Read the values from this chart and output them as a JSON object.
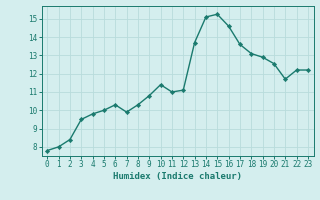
{
  "x": [
    0,
    1,
    2,
    3,
    4,
    5,
    6,
    7,
    8,
    9,
    10,
    11,
    12,
    13,
    14,
    15,
    16,
    17,
    18,
    19,
    20,
    21,
    22,
    23
  ],
  "y": [
    7.8,
    8.0,
    8.4,
    9.5,
    9.8,
    10.0,
    10.3,
    9.9,
    10.3,
    10.8,
    11.4,
    11.0,
    11.1,
    13.7,
    15.1,
    15.25,
    14.6,
    13.6,
    13.1,
    12.9,
    12.55,
    11.7,
    12.2,
    12.2
  ],
  "line_color": "#1a7a6e",
  "marker": "D",
  "marker_size": 2.2,
  "bg_color": "#d4eeee",
  "grid_color": "#b8dcdc",
  "xlabel": "Humidex (Indice chaleur)",
  "xlim": [
    -0.5,
    23.5
  ],
  "ylim": [
    7.5,
    15.7
  ],
  "yticks": [
    8,
    9,
    10,
    11,
    12,
    13,
    14,
    15
  ],
  "xticks": [
    0,
    1,
    2,
    3,
    4,
    5,
    6,
    7,
    8,
    9,
    10,
    11,
    12,
    13,
    14,
    15,
    16,
    17,
    18,
    19,
    20,
    21,
    22,
    23
  ],
  "tick_fontsize": 5.5,
  "xlabel_fontsize": 6.5,
  "line_width": 1.0
}
